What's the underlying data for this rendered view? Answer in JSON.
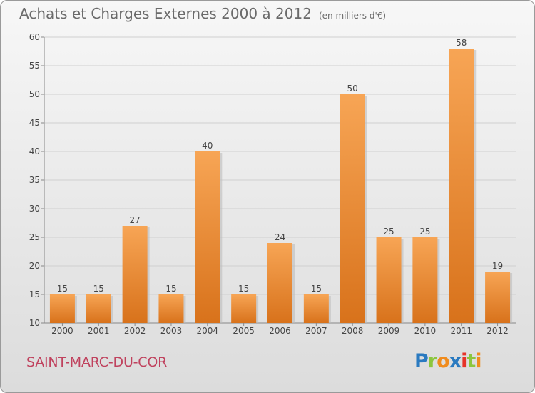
{
  "header": {
    "title": "Achats et Charges Externes 2000 à 2012",
    "subtitle": "(en milliers d'€)"
  },
  "footer": {
    "commune": "SAINT-MARC-DU-COR",
    "logo_letters": [
      {
        "char": "P",
        "color": "#2a7ac0"
      },
      {
        "char": "r",
        "color": "#8cc63e"
      },
      {
        "char": "o",
        "color": "#f08c1e"
      },
      {
        "char": "x",
        "color": "#2a7ac0"
      },
      {
        "char": "i",
        "color": "#e63329"
      },
      {
        "char": "t",
        "color": "#8cc63e"
      },
      {
        "char": "i",
        "color": "#f08c1e"
      }
    ]
  },
  "chart_data": {
    "type": "bar",
    "categories": [
      "2000",
      "2001",
      "2002",
      "2003",
      "2004",
      "2005",
      "2006",
      "2007",
      "2008",
      "2009",
      "2010",
      "2011",
      "2012"
    ],
    "values": [
      15,
      15,
      27,
      15,
      40,
      15,
      24,
      15,
      50,
      25,
      25,
      58,
      19
    ],
    "ylim": [
      10,
      60
    ],
    "yticks": [
      10,
      15,
      20,
      25,
      30,
      35,
      40,
      45,
      50,
      55,
      60
    ],
    "grid": true,
    "bar_color_top": "#f7a555",
    "bar_color_bottom": "#d8721b"
  }
}
